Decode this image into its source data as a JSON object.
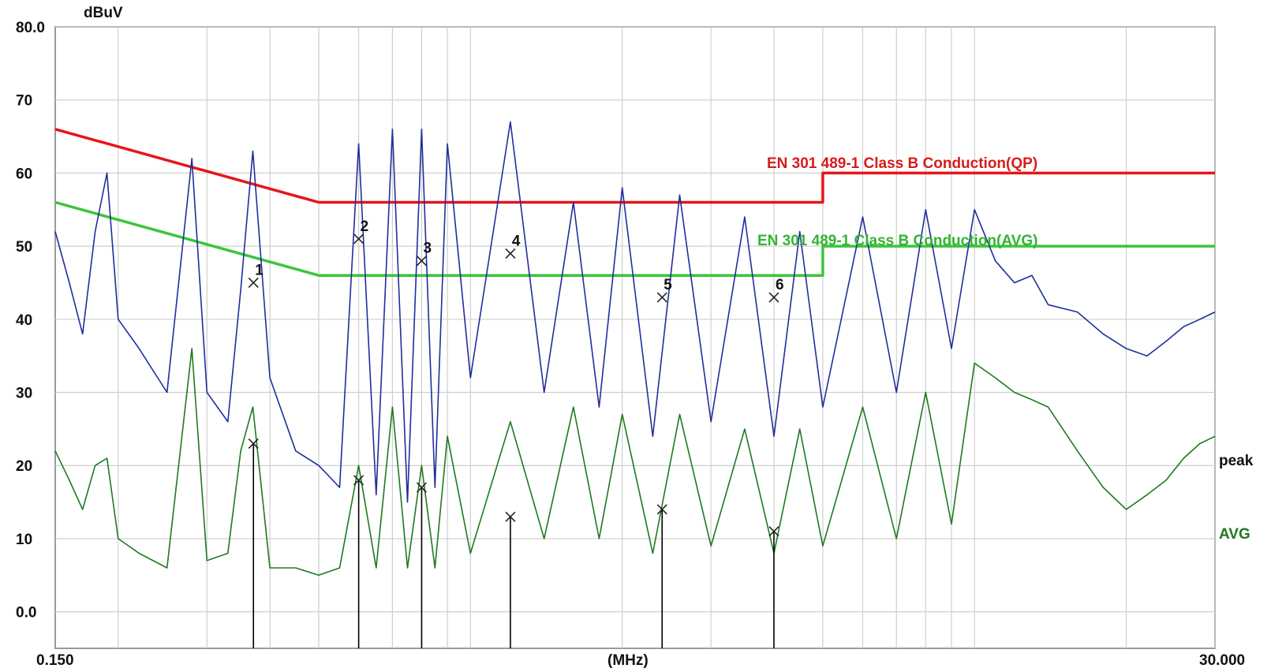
{
  "chart_data": {
    "type": "line",
    "title": "",
    "ylabel": "dBuV",
    "xlabel": "(MHz)",
    "x_scale": "log",
    "xlim": [
      0.15,
      30
    ],
    "ylim": [
      -5,
      80
    ],
    "grid": true,
    "y_ticks": [
      {
        "value": 80,
        "label": "80.0"
      },
      {
        "value": 70,
        "label": "70"
      },
      {
        "value": 60,
        "label": "60"
      },
      {
        "value": 50,
        "label": "50"
      },
      {
        "value": 40,
        "label": "40"
      },
      {
        "value": 30,
        "label": "30"
      },
      {
        "value": 20,
        "label": "20"
      },
      {
        "value": 10,
        "label": "10"
      },
      {
        "value": 0,
        "label": "0.0"
      }
    ],
    "x_tick_labels": {
      "left": "0.150",
      "center": "(MHz)",
      "right": "30.000"
    },
    "series": [
      {
        "name": "EN 301 489-1 Class B Conduction(QP)",
        "color": "#e8141b",
        "kind": "limit",
        "points": [
          [
            0.15,
            66
          ],
          [
            0.5,
            56
          ],
          [
            5,
            56
          ],
          [
            5,
            60
          ],
          [
            30,
            60
          ]
        ]
      },
      {
        "name": "EN 301 489-1 Class B Conduction(AVG)",
        "color": "#3cc43c",
        "kind": "limit",
        "points": [
          [
            0.15,
            56
          ],
          [
            0.5,
            46
          ],
          [
            5,
            46
          ],
          [
            5,
            50
          ],
          [
            30,
            50
          ]
        ]
      },
      {
        "name": "peak",
        "color": "#1f2f9e",
        "kind": "measurement",
        "points": [
          [
            0.15,
            52
          ],
          [
            0.16,
            45
          ],
          [
            0.17,
            38
          ],
          [
            0.18,
            52
          ],
          [
            0.19,
            60
          ],
          [
            0.2,
            40
          ],
          [
            0.22,
            36
          ],
          [
            0.25,
            30
          ],
          [
            0.28,
            62
          ],
          [
            0.3,
            30
          ],
          [
            0.33,
            26
          ],
          [
            0.35,
            44
          ],
          [
            0.37,
            63
          ],
          [
            0.4,
            32
          ],
          [
            0.45,
            22
          ],
          [
            0.5,
            20
          ],
          [
            0.55,
            17
          ],
          [
            0.6,
            64
          ],
          [
            0.65,
            16
          ],
          [
            0.7,
            66
          ],
          [
            0.75,
            15
          ],
          [
            0.8,
            66
          ],
          [
            0.85,
            17
          ],
          [
            0.9,
            64
          ],
          [
            1.0,
            32
          ],
          [
            1.2,
            67
          ],
          [
            1.4,
            30
          ],
          [
            1.6,
            56
          ],
          [
            1.8,
            28
          ],
          [
            2.0,
            58
          ],
          [
            2.3,
            24
          ],
          [
            2.6,
            57
          ],
          [
            3.0,
            26
          ],
          [
            3.5,
            54
          ],
          [
            4.0,
            24
          ],
          [
            4.5,
            52
          ],
          [
            5.0,
            28
          ],
          [
            6.0,
            54
          ],
          [
            7.0,
            30
          ],
          [
            8.0,
            55
          ],
          [
            9.0,
            36
          ],
          [
            10.0,
            55
          ],
          [
            11.0,
            48
          ],
          [
            12.0,
            45
          ],
          [
            13.0,
            46
          ],
          [
            14.0,
            42
          ],
          [
            16.0,
            41
          ],
          [
            18.0,
            38
          ],
          [
            20.0,
            36
          ],
          [
            22.0,
            35
          ],
          [
            24.0,
            37
          ],
          [
            26.0,
            39
          ],
          [
            28.0,
            40
          ],
          [
            30.0,
            41
          ]
        ]
      },
      {
        "name": "AVG",
        "color": "#1e7a1e",
        "kind": "measurement",
        "points": [
          [
            0.15,
            22
          ],
          [
            0.16,
            18
          ],
          [
            0.17,
            14
          ],
          [
            0.18,
            20
          ],
          [
            0.19,
            21
          ],
          [
            0.2,
            10
          ],
          [
            0.22,
            8
          ],
          [
            0.25,
            6
          ],
          [
            0.28,
            36
          ],
          [
            0.3,
            7
          ],
          [
            0.33,
            8
          ],
          [
            0.35,
            22
          ],
          [
            0.37,
            28
          ],
          [
            0.4,
            6
          ],
          [
            0.45,
            6
          ],
          [
            0.5,
            5
          ],
          [
            0.55,
            6
          ],
          [
            0.6,
            20
          ],
          [
            0.65,
            6
          ],
          [
            0.7,
            28
          ],
          [
            0.75,
            6
          ],
          [
            0.8,
            20
          ],
          [
            0.85,
            6
          ],
          [
            0.9,
            24
          ],
          [
            1.0,
            8
          ],
          [
            1.2,
            26
          ],
          [
            1.4,
            10
          ],
          [
            1.6,
            28
          ],
          [
            1.8,
            10
          ],
          [
            2.0,
            27
          ],
          [
            2.3,
            8
          ],
          [
            2.6,
            27
          ],
          [
            3.0,
            9
          ],
          [
            3.5,
            25
          ],
          [
            4.0,
            8
          ],
          [
            4.5,
            25
          ],
          [
            5.0,
            9
          ],
          [
            6.0,
            28
          ],
          [
            7.0,
            10
          ],
          [
            8.0,
            30
          ],
          [
            9.0,
            12
          ],
          [
            10.0,
            34
          ],
          [
            11.0,
            32
          ],
          [
            12.0,
            30
          ],
          [
            13.0,
            29
          ],
          [
            14.0,
            28
          ],
          [
            16.0,
            22
          ],
          [
            18.0,
            17
          ],
          [
            20.0,
            14
          ],
          [
            22.0,
            16
          ],
          [
            24.0,
            18
          ],
          [
            26.0,
            21
          ],
          [
            28.0,
            23
          ],
          [
            30.0,
            24
          ]
        ]
      }
    ],
    "markers": [
      {
        "id": "1",
        "x": 0.371,
        "peak": 45,
        "avg": 23
      },
      {
        "id": "2",
        "x": 0.6,
        "peak": 51,
        "avg": 18
      },
      {
        "id": "3",
        "x": 0.8,
        "peak": 48,
        "avg": 17
      },
      {
        "id": "4",
        "x": 1.2,
        "peak": 49,
        "avg": 13
      },
      {
        "id": "5",
        "x": 2.4,
        "peak": 43,
        "avg": 14
      },
      {
        "id": "6",
        "x": 4.0,
        "peak": 43,
        "avg": 11
      }
    ],
    "labels": {
      "qp_limit": "EN 301 489-1 Class B Conduction(QP)",
      "avg_limit": "EN 301 489-1 Class B Conduction(AVG)",
      "peak": "peak",
      "avg": "AVG"
    }
  }
}
